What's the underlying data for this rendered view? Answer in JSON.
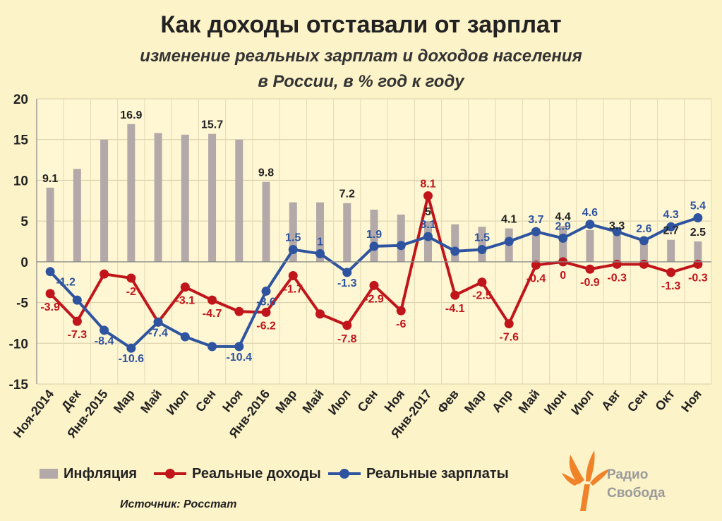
{
  "chart_data": {
    "type": "bar+line",
    "title": "Как доходы отставали от зарплат",
    "subtitle_line1": "изменение реальных зарплат и доходов населения",
    "subtitle_line2": "в России, в % год к году",
    "categories": [
      "Ноя-2014",
      "Дек",
      "Янв-2015",
      "Мар",
      "Май",
      "Июл",
      "Сен",
      "Ноя",
      "Янв-2016",
      "Мар",
      "Май",
      "Июл",
      "Сен",
      "Ноя",
      "Янв-2017",
      "Фев",
      "Мар",
      "Апр",
      "Май",
      "Июн",
      "Июл",
      "Авг",
      "Сен",
      "Окт",
      "Ноя"
    ],
    "ylim": [
      -15,
      20
    ],
    "yticks": [
      -15,
      -10,
      -5,
      0,
      5,
      10,
      15,
      20
    ],
    "grid": true,
    "legend_position": "bottom",
    "series": [
      {
        "name": "Инфляция",
        "kind": "bar",
        "color": "#b3a9a9",
        "values": [
          9.1,
          11.4,
          15.0,
          16.9,
          15.8,
          15.6,
          15.7,
          15.0,
          9.8,
          7.3,
          7.3,
          7.2,
          6.4,
          5.8,
          5.0,
          4.6,
          4.3,
          4.1,
          4.1,
          4.4,
          3.9,
          3.3,
          3.0,
          2.7,
          2.5
        ],
        "labels": [
          "9.1",
          "",
          "",
          "16.9",
          "",
          "",
          "15.7",
          "",
          "9.8",
          "",
          "",
          "7.2",
          "",
          "",
          "5",
          "",
          "",
          "4.1",
          "",
          "4.4",
          "",
          "3.3",
          "",
          "2.7",
          "2.5"
        ]
      },
      {
        "name": "Реальные доходы",
        "kind": "line",
        "color": "#c0151a",
        "values": [
          -3.9,
          -7.3,
          -1.5,
          -2.0,
          -7.4,
          -3.1,
          -4.7,
          -6.1,
          -6.2,
          -1.7,
          -6.4,
          -7.8,
          -2.9,
          -6.0,
          8.1,
          -4.1,
          -2.5,
          -7.6,
          -0.4,
          0.0,
          -0.9,
          -0.3,
          -0.3,
          -1.3,
          -0.3
        ],
        "labels": [
          "-3.9",
          "-7.3",
          "",
          "-2",
          "",
          "-3.1",
          "-4.7",
          "",
          "-6.2",
          "-1.7",
          "",
          "-7.8",
          "-2.9",
          "-6",
          "8.1",
          "-4.1",
          "-2.5",
          "-7.6",
          "-0.4",
          "0",
          "-0.9",
          "-0.3",
          "",
          "-1.3",
          "-0.3"
        ]
      },
      {
        "name": "Реальные зарплаты",
        "kind": "line",
        "color": "#2e54a0",
        "values": [
          -1.2,
          -4.7,
          -8.4,
          -10.6,
          -7.4,
          -9.2,
          -10.4,
          -10.4,
          -3.6,
          1.5,
          1.0,
          -1.3,
          1.9,
          2.0,
          3.1,
          1.3,
          1.5,
          2.5,
          3.7,
          2.9,
          4.6,
          3.7,
          2.6,
          4.3,
          5.4
        ],
        "labels": [
          "-1.2",
          "",
          "-8.4",
          "-10.6",
          "-7.4",
          "",
          "",
          "-10.4",
          "-3.6",
          "1.5",
          "1",
          "-1.3",
          "1.9",
          "",
          "3.1",
          "",
          "1.5",
          "",
          "3.7",
          "2.9",
          "4.6",
          "",
          "2.6",
          "4.3",
          "5.4"
        ]
      }
    ]
  },
  "footer": {
    "source": "Источник: Росстат",
    "logo_line1": "Радио",
    "logo_line2": "Свобода"
  }
}
